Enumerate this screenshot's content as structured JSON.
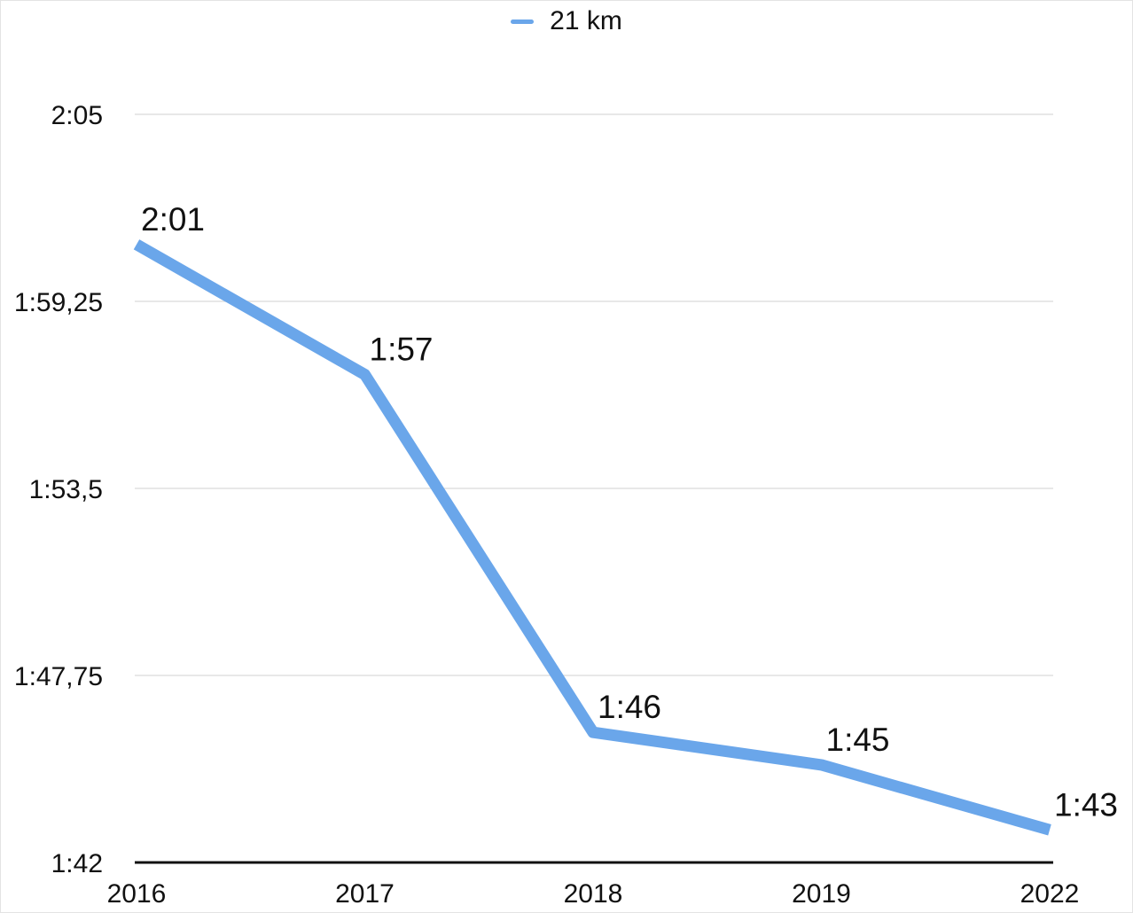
{
  "chart_data": {
    "type": "line",
    "categories": [
      "2016",
      "2017",
      "2018",
      "2019",
      "2022"
    ],
    "series": [
      {
        "name": "21 km",
        "values_minutes": [
          121,
          117,
          106,
          105,
          103
        ],
        "data_labels": [
          "2:01",
          "1:57",
          "1:46",
          "1:45",
          "1:43"
        ],
        "color": "#6aa6ea"
      }
    ],
    "ylim_minutes": [
      102,
      125
    ],
    "yticks": [
      {
        "value": 125,
        "label": "2:05"
      },
      {
        "value": 119.25,
        "label": "1:59,25"
      },
      {
        "value": 113.5,
        "label": "1:53,5"
      },
      {
        "value": 107.75,
        "label": "1:47,75"
      },
      {
        "value": 102,
        "label": "1:42"
      }
    ],
    "grid": true,
    "legend": "top-center",
    "title": "",
    "xlabel": "",
    "ylabel": ""
  }
}
